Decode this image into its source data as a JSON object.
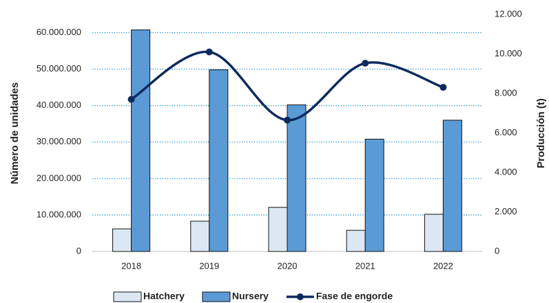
{
  "chart_data": {
    "type": "bar_line",
    "y_label": "Número de unidades",
    "y2_label": "Producción (t)",
    "categories": [
      "2018",
      "2019",
      "2020",
      "2021",
      "2022"
    ],
    "series": [
      {
        "name": "Hatchery",
        "color": "#dce7f4",
        "type": "bar",
        "values": [
          6200000,
          8300000,
          12100000,
          5800000,
          10200000
        ]
      },
      {
        "name": "Nursery",
        "color": "#5b9bd5",
        "type": "bar",
        "values": [
          60750000,
          49800000,
          40200000,
          30800000,
          36000000
        ]
      },
      {
        "name": "Fase de engorde",
        "color": "#0d2a5e",
        "type": "line",
        "axis": "y2",
        "values": [
          7700,
          10100,
          6650,
          9530,
          8310
        ]
      }
    ],
    "ylim": [
      0,
      65000000
    ],
    "yticks": [
      0,
      {
        "value": 10000000,
        "label": "10.000.000"
      },
      {
        "value": 20000000,
        "label": "20.000.000"
      },
      {
        "value": 30000000,
        "label": "30.000.000"
      },
      {
        "value": 40000000,
        "label": "40.000.000"
      },
      {
        "value": 50000000,
        "label": "50.000.000"
      },
      {
        "value": 60000000,
        "label": "60.000.000"
      }
    ],
    "y2lim": [
      0,
      12000
    ],
    "y2ticks": [
      0,
      {
        "value": 2000,
        "label": "2.000"
      },
      {
        "value": 4000,
        "label": "4.000"
      },
      {
        "value": 6000,
        "label": "6.000"
      },
      {
        "value": 8000,
        "label": "8.000"
      },
      {
        "value": 10000,
        "label": "10.000"
      },
      {
        "value": 12000,
        "label": "12.000"
      }
    ],
    "grid": true,
    "legend": "bottom"
  }
}
